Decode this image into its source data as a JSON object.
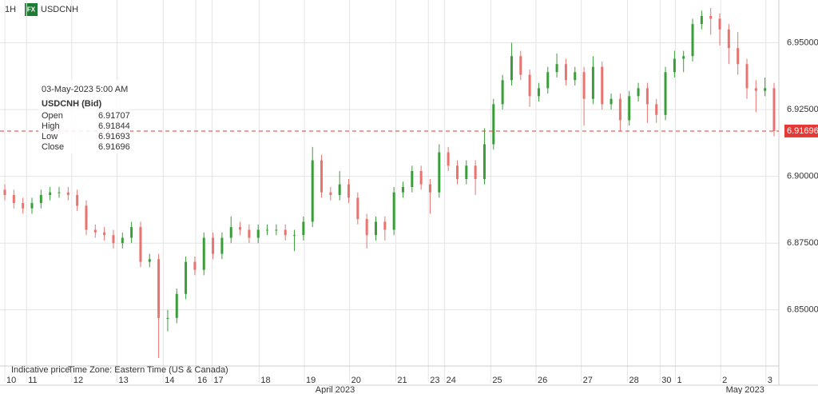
{
  "chart_data": {
    "type": "candlestick",
    "interval": "1H",
    "badge": "FX",
    "symbol": "USDCNH",
    "tooltip": {
      "date": "03-May-2023 5:00 AM",
      "instrument": "USDCNH (Bid)",
      "rows": [
        [
          "Open",
          6.91707
        ],
        [
          "High",
          6.91844
        ],
        [
          "Low",
          6.91693
        ],
        [
          "Close",
          6.91696
        ]
      ]
    },
    "footer": [
      "Indicative price",
      "Time Zone: Eastern Time (US & Canada)"
    ],
    "up_color": "#3a9d3a",
    "down_color": "#e8736f",
    "grid": true,
    "ylim": [
      6.829,
      6.966
    ],
    "yticks": [
      {
        "value": 6.85,
        "label": "6.85000"
      },
      {
        "value": 6.875,
        "label": "6.87500"
      },
      {
        "value": 6.9,
        "label": "6.90000"
      },
      {
        "value": 6.925,
        "label": "6.92500"
      },
      {
        "value": 6.95,
        "label": "6.95000"
      }
    ],
    "last_price": 6.91696,
    "last_price_color": "#e53935",
    "xlim": [
      -0.53,
      85.53
    ],
    "xticks": [
      {
        "value": 0,
        "label": "10"
      },
      {
        "value": 2.4,
        "label": "11"
      },
      {
        "value": 7.4,
        "label": "12"
      },
      {
        "value": 12.4,
        "label": "13"
      },
      {
        "value": 17.5,
        "label": "14"
      },
      {
        "value": 21.1,
        "label": "16"
      },
      {
        "value": 22.9,
        "label": "17"
      },
      {
        "value": 28.1,
        "label": "18"
      },
      {
        "value": 33.1,
        "label": "19"
      },
      {
        "value": 38.1,
        "label": "20"
      },
      {
        "value": 43.2,
        "label": "21"
      },
      {
        "value": 46.8,
        "label": "23"
      },
      {
        "value": 48.6,
        "label": "24"
      },
      {
        "value": 53.7,
        "label": "25"
      },
      {
        "value": 58.7,
        "label": "26"
      },
      {
        "value": 63.7,
        "label": "27"
      },
      {
        "value": 68.8,
        "label": "28"
      },
      {
        "value": 72.4,
        "label": "30"
      },
      {
        "value": 74.1,
        "label": "1"
      },
      {
        "value": 79.1,
        "label": "2"
      },
      {
        "value": 84.1,
        "label": "3"
      }
    ],
    "month_labels": [
      {
        "value": 36.5,
        "label": "April 2023"
      },
      {
        "value": 81.8,
        "label": "May 2023"
      }
    ],
    "x": [
      0,
      1,
      2,
      3,
      4,
      5,
      6,
      7,
      8,
      9,
      10,
      11,
      12,
      13,
      14,
      15,
      16,
      17,
      18,
      19,
      20,
      21,
      22,
      23,
      24,
      25,
      26,
      27,
      28,
      29,
      30,
      31,
      32,
      33,
      34,
      35,
      36,
      37,
      38,
      39,
      40,
      41,
      42,
      43,
      44,
      45,
      46,
      47,
      48,
      49,
      50,
      51,
      52,
      53,
      54,
      55,
      56,
      57,
      58,
      59,
      60,
      61,
      62,
      63,
      64,
      65,
      66,
      67,
      68,
      69,
      70,
      71,
      72,
      73,
      74,
      75,
      76,
      77,
      78,
      79,
      80,
      81,
      82,
      83,
      84,
      85
    ],
    "ohlc": [
      [
        6.895,
        6.897,
        6.891,
        6.893
      ],
      [
        6.893,
        6.895,
        6.888,
        6.89
      ],
      [
        6.89,
        6.892,
        6.886,
        6.888
      ],
      [
        6.888,
        6.892,
        6.886,
        6.89
      ],
      [
        6.89,
        6.895,
        6.888,
        6.893
      ],
      [
        6.893,
        6.896,
        6.891,
        6.894
      ],
      [
        6.894,
        6.896,
        6.892,
        6.894
      ],
      [
        6.894,
        6.896,
        6.891,
        6.893
      ],
      [
        6.893,
        6.895,
        6.887,
        6.889
      ],
      [
        6.889,
        6.891,
        6.878,
        6.88
      ],
      [
        6.88,
        6.882,
        6.877,
        6.879
      ],
      [
        6.879,
        6.881,
        6.876,
        6.878
      ],
      [
        6.878,
        6.88,
        6.873,
        6.875
      ],
      [
        6.875,
        6.879,
        6.873,
        6.877
      ],
      [
        6.877,
        6.883,
        6.875,
        6.881
      ],
      [
        6.881,
        6.883,
        6.866,
        6.868
      ],
      [
        6.868,
        6.871,
        6.866,
        6.869
      ],
      [
        6.869,
        6.871,
        6.832,
        6.847
      ],
      [
        6.847,
        6.85,
        6.842,
        6.847
      ],
      [
        6.847,
        6.858,
        6.845,
        6.856
      ],
      [
        6.856,
        6.87,
        6.854,
        6.868
      ],
      [
        6.868,
        6.87,
        6.863,
        6.865
      ],
      [
        6.865,
        6.879,
        6.863,
        6.877
      ],
      [
        6.877,
        6.879,
        6.869,
        6.871
      ],
      [
        6.871,
        6.879,
        6.869,
        6.877
      ],
      [
        6.877,
        6.885,
        6.875,
        6.881
      ],
      [
        6.881,
        6.883,
        6.878,
        6.88
      ],
      [
        6.88,
        6.882,
        6.875,
        6.877
      ],
      [
        6.877,
        6.882,
        6.875,
        6.88
      ],
      [
        6.88,
        6.882,
        6.878,
        6.88
      ],
      [
        6.88,
        6.882,
        6.878,
        6.88
      ],
      [
        6.88,
        6.882,
        6.876,
        6.878
      ],
      [
        6.878,
        6.88,
        6.872,
        6.878
      ],
      [
        6.878,
        6.885,
        6.876,
        6.883
      ],
      [
        6.883,
        6.911,
        6.881,
        6.906
      ],
      [
        6.906,
        6.908,
        6.892,
        6.894
      ],
      [
        6.894,
        6.896,
        6.891,
        6.893
      ],
      [
        6.893,
        6.902,
        6.891,
        6.897
      ],
      [
        6.897,
        6.899,
        6.89,
        6.892
      ],
      [
        6.892,
        6.894,
        6.882,
        6.884
      ],
      [
        6.884,
        6.886,
        6.873,
        6.878
      ],
      [
        6.878,
        6.885,
        6.876,
        6.883
      ],
      [
        6.883,
        6.885,
        6.876,
        6.88
      ],
      [
        6.88,
        6.896,
        6.878,
        6.894
      ],
      [
        6.894,
        6.898,
        6.892,
        6.896
      ],
      [
        6.896,
        6.904,
        6.894,
        6.902
      ],
      [
        6.902,
        6.904,
        6.895,
        6.897
      ],
      [
        6.897,
        6.899,
        6.886,
        6.894
      ],
      [
        6.894,
        6.912,
        6.892,
        6.909
      ],
      [
        6.909,
        6.911,
        6.902,
        6.904
      ],
      [
        6.904,
        6.906,
        6.897,
        6.899
      ],
      [
        6.899,
        6.906,
        6.897,
        6.904
      ],
      [
        6.904,
        6.906,
        6.893,
        6.899
      ],
      [
        6.899,
        6.918,
        6.897,
        6.912
      ],
      [
        6.912,
        6.929,
        6.91,
        6.927
      ],
      [
        6.927,
        6.938,
        6.925,
        6.936
      ],
      [
        6.936,
        6.95,
        6.934,
        6.945
      ],
      [
        6.945,
        6.947,
        6.936,
        6.938
      ],
      [
        6.938,
        6.94,
        6.926,
        6.93
      ],
      [
        6.93,
        6.935,
        6.928,
        6.933
      ],
      [
        6.933,
        6.941,
        6.931,
        6.939
      ],
      [
        6.939,
        6.946,
        6.937,
        6.942
      ],
      [
        6.942,
        6.944,
        6.934,
        6.936
      ],
      [
        6.936,
        6.941,
        6.934,
        6.939
      ],
      [
        6.939,
        6.941,
        6.919,
        6.929
      ],
      [
        6.929,
        6.945,
        6.927,
        6.941
      ],
      [
        6.941,
        6.943,
        6.925,
        6.927
      ],
      [
        6.927,
        6.931,
        6.925,
        6.929
      ],
      [
        6.929,
        6.931,
        6.917,
        6.921
      ],
      [
        6.921,
        6.932,
        6.919,
        6.93
      ],
      [
        6.93,
        6.935,
        6.928,
        6.933
      ],
      [
        6.933,
        6.935,
        6.92,
        6.927
      ],
      [
        6.927,
        6.929,
        6.92,
        6.923
      ],
      [
        6.923,
        6.941,
        6.921,
        6.939
      ],
      [
        6.939,
        6.947,
        6.937,
        6.944
      ],
      [
        6.944,
        6.947,
        6.939,
        6.945
      ],
      [
        6.945,
        6.959,
        6.943,
        6.957
      ],
      [
        6.957,
        6.962,
        6.955,
        6.96
      ],
      [
        6.96,
        6.963,
        6.953,
        6.959
      ],
      [
        6.959,
        6.961,
        6.949,
        6.955
      ],
      [
        6.955,
        6.957,
        6.942,
        6.948
      ],
      [
        6.948,
        6.954,
        6.938,
        6.942
      ],
      [
        6.942,
        6.944,
        6.929,
        6.933
      ],
      [
        6.933,
        6.936,
        6.924,
        6.932
      ],
      [
        6.932,
        6.937,
        6.93,
        6.933
      ],
      [
        6.933,
        6.935,
        6.915,
        6.91696
      ]
    ]
  }
}
